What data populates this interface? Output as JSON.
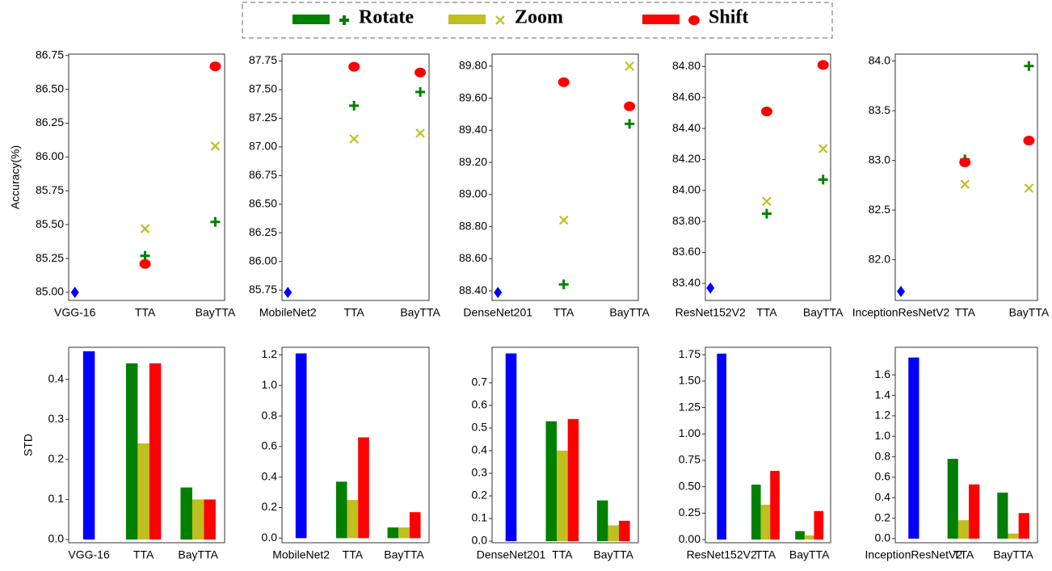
{
  "legend": {
    "items": [
      {
        "label": "Rotate",
        "color": "#008000",
        "marker": "plus"
      },
      {
        "label": "Zoom",
        "color": "#bfbf1f",
        "marker": "x"
      },
      {
        "label": "Shift",
        "color": "#ff0000",
        "marker": "circle"
      }
    ]
  },
  "chart_data": [
    {
      "type": "scatter",
      "ylabel": "Accuracy(%)",
      "categories": [
        "VGG-16",
        "TTA",
        "BayTTA"
      ],
      "series": [
        {
          "color": "#0000ff",
          "marker": "diamond",
          "values": [
            85.0,
            null,
            null
          ]
        },
        {
          "color": "#008000",
          "marker": "plus",
          "values": [
            null,
            85.27,
            85.52
          ]
        },
        {
          "color": "#bfbf1f",
          "marker": "x",
          "values": [
            null,
            85.47,
            86.08
          ]
        },
        {
          "color": "#ff0000",
          "marker": "circle",
          "values": [
            null,
            85.21,
            86.67
          ]
        }
      ],
      "ylim": [
        84.94,
        86.76
      ],
      "yticks": [
        {
          "value": 85,
          "label": "85.00"
        },
        85.25,
        {
          "value": 85.5,
          "label": "85.50"
        },
        85.75,
        {
          "value": 86,
          "label": "86.00"
        },
        86.25,
        {
          "value": 86.5,
          "label": "86.50"
        },
        86.75
      ]
    },
    {
      "type": "scatter",
      "categories": [
        "MobileNet2",
        "TTA",
        "BayTTA"
      ],
      "series": [
        {
          "color": "#0000ff",
          "marker": "diamond",
          "values": [
            85.73,
            null,
            null
          ]
        },
        {
          "color": "#008000",
          "marker": "plus",
          "values": [
            null,
            87.36,
            87.48
          ]
        },
        {
          "color": "#bfbf1f",
          "marker": "x",
          "values": [
            null,
            87.07,
            87.12
          ]
        },
        {
          "color": "#ff0000",
          "marker": "circle",
          "values": [
            null,
            87.7,
            87.65
          ]
        }
      ],
      "ylim": [
        85.66,
        87.81
      ],
      "yticks": [
        85.75,
        {
          "value": 86,
          "label": "86.00"
        },
        86.25,
        {
          "value": 86.5,
          "label": "86.50"
        },
        86.75,
        {
          "value": 87,
          "label": "87.00"
        },
        87.25,
        {
          "value": 87.5,
          "label": "87.50"
        },
        87.75
      ]
    },
    {
      "type": "scatter",
      "categories": [
        "DenseNet201",
        "TTA",
        "BayTTA"
      ],
      "series": [
        {
          "color": "#0000ff",
          "marker": "diamond",
          "values": [
            88.39,
            null,
            null
          ]
        },
        {
          "color": "#008000",
          "marker": "plus",
          "values": [
            null,
            88.44,
            89.44
          ]
        },
        {
          "color": "#bfbf1f",
          "marker": "x",
          "values": [
            null,
            88.84,
            89.8
          ]
        },
        {
          "color": "#ff0000",
          "marker": "circle",
          "values": [
            null,
            89.7,
            89.55
          ]
        }
      ],
      "ylim": [
        88.34,
        89.875
      ],
      "yticks": [
        {
          "value": 88.4,
          "label": "88.40"
        },
        {
          "value": 88.6,
          "label": "88.60"
        },
        {
          "value": 88.8,
          "label": "88.80"
        },
        {
          "value": 89,
          "label": "89.00"
        },
        {
          "value": 89.2,
          "label": "89.20"
        },
        {
          "value": 89.4,
          "label": "89.40"
        },
        {
          "value": 89.6,
          "label": "89.60"
        },
        {
          "value": 89.8,
          "label": "89.80"
        }
      ]
    },
    {
      "type": "scatter",
      "categories": [
        "ResNet152V2",
        "TTA",
        "BayTTA"
      ],
      "series": [
        {
          "color": "#0000ff",
          "marker": "diamond",
          "values": [
            83.37,
            null,
            null
          ]
        },
        {
          "color": "#008000",
          "marker": "plus",
          "values": [
            null,
            83.85,
            84.07
          ]
        },
        {
          "color": "#bfbf1f",
          "marker": "x",
          "values": [
            null,
            83.93,
            84.27
          ]
        },
        {
          "color": "#ff0000",
          "marker": "circle",
          "values": [
            null,
            84.51,
            84.81
          ]
        }
      ],
      "ylim": [
        83.29,
        84.88
      ],
      "yticks": [
        {
          "value": 83.4,
          "label": "83.40"
        },
        {
          "value": 83.6,
          "label": "83.60"
        },
        {
          "value": 83.8,
          "label": "83.80"
        },
        {
          "value": 84,
          "label": "84.00"
        },
        {
          "value": 84.2,
          "label": "84.20"
        },
        {
          "value": 84.4,
          "label": "84.40"
        },
        {
          "value": 84.6,
          "label": "84.60"
        },
        {
          "value": 84.8,
          "label": "84.80"
        }
      ]
    },
    {
      "type": "scatter",
      "categories": [
        "InceptionResNetV2",
        "TTA",
        "BayTTA"
      ],
      "series": [
        {
          "color": "#0000ff",
          "marker": "diamond",
          "values": [
            81.68,
            null,
            null
          ]
        },
        {
          "color": "#008000",
          "marker": "plus",
          "values": [
            null,
            83.01,
            83.95
          ]
        },
        {
          "color": "#bfbf1f",
          "marker": "x",
          "values": [
            null,
            82.76,
            82.72
          ]
        },
        {
          "color": "#ff0000",
          "marker": "circle",
          "values": [
            null,
            82.98,
            83.2
          ]
        }
      ],
      "ylim": [
        81.59,
        84.07
      ],
      "yticks": [
        {
          "value": 82,
          "label": "82.0"
        },
        82.5,
        {
          "value": 83,
          "label": "83.0"
        },
        83.5,
        {
          "value": 84,
          "label": "84.0"
        }
      ]
    },
    {
      "type": "bar",
      "ylabel": "STD",
      "categories": [
        "VGG-16",
        "TTA",
        "BayTTA"
      ],
      "series": [
        {
          "color": "#0000ff",
          "values": [
            0.47,
            null,
            null
          ]
        },
        {
          "color": "#008000",
          "values": [
            null,
            0.44,
            0.13
          ]
        },
        {
          "color": "#bfbf1f",
          "values": [
            null,
            0.24,
            0.1
          ]
        },
        {
          "color": "#ff0000",
          "values": [
            null,
            0.44,
            0.1
          ]
        }
      ],
      "ylim": [
        -0.008,
        0.48
      ],
      "yticks": [
        {
          "value": 0,
          "label": "0.0"
        },
        0.1,
        0.2,
        0.3,
        0.4
      ]
    },
    {
      "type": "bar",
      "categories": [
        "MobileNet2",
        "TTA",
        "BayTTA"
      ],
      "series": [
        {
          "color": "#0000ff",
          "values": [
            1.21,
            null,
            null
          ]
        },
        {
          "color": "#008000",
          "values": [
            null,
            0.37,
            0.07
          ]
        },
        {
          "color": "#bfbf1f",
          "values": [
            null,
            0.25,
            0.07
          ]
        },
        {
          "color": "#ff0000",
          "values": [
            null,
            0.66,
            0.17
          ]
        }
      ],
      "ylim": [
        -0.03,
        1.25
      ],
      "yticks": [
        {
          "value": 0,
          "label": "0.0"
        },
        0.2,
        0.4,
        0.6,
        0.8,
        {
          "value": 1,
          "label": "1.0"
        },
        1.2
      ]
    },
    {
      "type": "bar",
      "categories": [
        "DenseNet201",
        "TTA",
        "BayTTA"
      ],
      "series": [
        {
          "color": "#0000ff",
          "values": [
            0.83,
            null,
            null
          ]
        },
        {
          "color": "#008000",
          "values": [
            null,
            0.53,
            0.18
          ]
        },
        {
          "color": "#bfbf1f",
          "values": [
            null,
            0.4,
            0.07
          ]
        },
        {
          "color": "#ff0000",
          "values": [
            null,
            0.54,
            0.09
          ]
        }
      ],
      "ylim": [
        -0.007,
        0.857
      ],
      "yticks": [
        {
          "value": 0,
          "label": "0.0"
        },
        0.1,
        0.2,
        0.3,
        0.4,
        0.5,
        0.6,
        0.7
      ]
    },
    {
      "type": "bar",
      "categories": [
        "ResNet152V2",
        "TTA",
        "BayTTA"
      ],
      "series": [
        {
          "color": "#0000ff",
          "values": [
            1.76,
            null,
            null
          ]
        },
        {
          "color": "#008000",
          "values": [
            null,
            0.52,
            0.08
          ]
        },
        {
          "color": "#bfbf1f",
          "values": [
            null,
            0.33,
            0.04
          ]
        },
        {
          "color": "#ff0000",
          "values": [
            null,
            0.65,
            0.27
          ]
        }
      ],
      "ylim": [
        -0.03,
        1.82
      ],
      "yticks": [
        {
          "value": 0,
          "label": "0.00"
        },
        0.25,
        {
          "value": 0.5,
          "label": "0.50"
        },
        0.75,
        {
          "value": 1,
          "label": "1.00"
        },
        1.25,
        {
          "value": 1.5,
          "label": "1.50"
        },
        1.75
      ]
    },
    {
      "type": "bar",
      "categories": [
        "InceptionResNetV2",
        "TTA",
        "BayTTA"
      ],
      "series": [
        {
          "color": "#0000ff",
          "values": [
            1.77,
            null,
            null
          ]
        },
        {
          "color": "#008000",
          "values": [
            null,
            0.78,
            0.45
          ]
        },
        {
          "color": "#bfbf1f",
          "values": [
            null,
            0.18,
            0.05
          ]
        },
        {
          "color": "#ff0000",
          "values": [
            null,
            0.53,
            0.25
          ]
        }
      ],
      "ylim": [
        -0.04,
        1.87
      ],
      "yticks": [
        {
          "value": 0,
          "label": "0.0"
        },
        0.2,
        0.4,
        0.6,
        0.8,
        {
          "value": 1,
          "label": "1.0"
        },
        1.2,
        1.4,
        1.6
      ]
    }
  ]
}
